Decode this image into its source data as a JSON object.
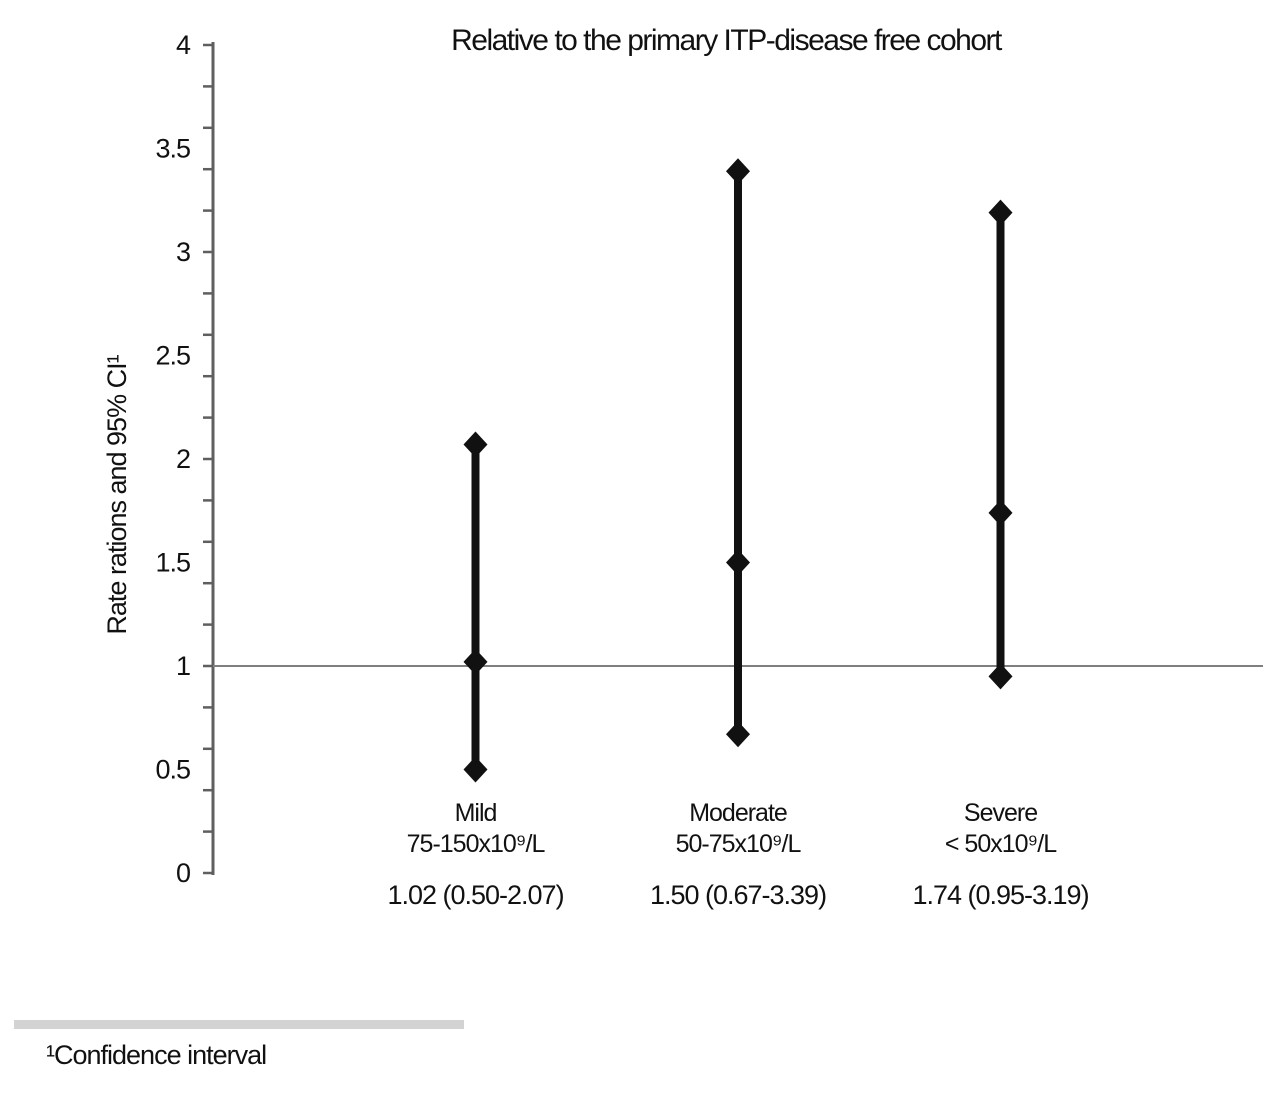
{
  "chart_data": {
    "type": "scatter",
    "subtype": "point-estimate-with-95ci-whiskers",
    "title": "Relative to the primary ITP-disease free cohort",
    "xlabel": "",
    "ylabel": "Rate rations and 95% CI¹",
    "ylim": [
      0,
      4
    ],
    "ytick_label_step": 0.5,
    "ytick_labels": [
      "0",
      "0.5",
      "1",
      "1.5",
      "2",
      "2.5",
      "3",
      "3.5",
      "4"
    ],
    "minor_tick_step": 0.2,
    "reference_line_y": 1,
    "grid": false,
    "legend": "none",
    "marker": "diamond",
    "categories": [
      "Mild",
      "Moderate",
      "Severe"
    ],
    "groups": [
      {
        "label": "Mild",
        "sublabel": "75-150x10⁹/L",
        "annotation": "1.02 (0.50-2.07)",
        "estimate": 1.02,
        "ci_low": 0.5,
        "ci_high": 2.07
      },
      {
        "label": "Moderate",
        "sublabel": "50-75x10⁹/L",
        "annotation": "1.50 (0.67-3.39)",
        "estimate": 1.5,
        "ci_low": 0.67,
        "ci_high": 3.39
      },
      {
        "label": "Severe",
        "sublabel": "< 50x10⁹/L",
        "annotation": "1.74 (0.95-3.19)",
        "estimate": 1.74,
        "ci_low": 0.95,
        "ci_high": 3.19
      }
    ],
    "footnote": "¹Confidence interval",
    "colors": {
      "marker": "#111111",
      "ci_line": "#111111",
      "axis": "#5f5f5f",
      "reference_line": "#7f7f7f",
      "divider": "#d3d3d3",
      "text": "#111111",
      "background": "#ffffff"
    }
  }
}
